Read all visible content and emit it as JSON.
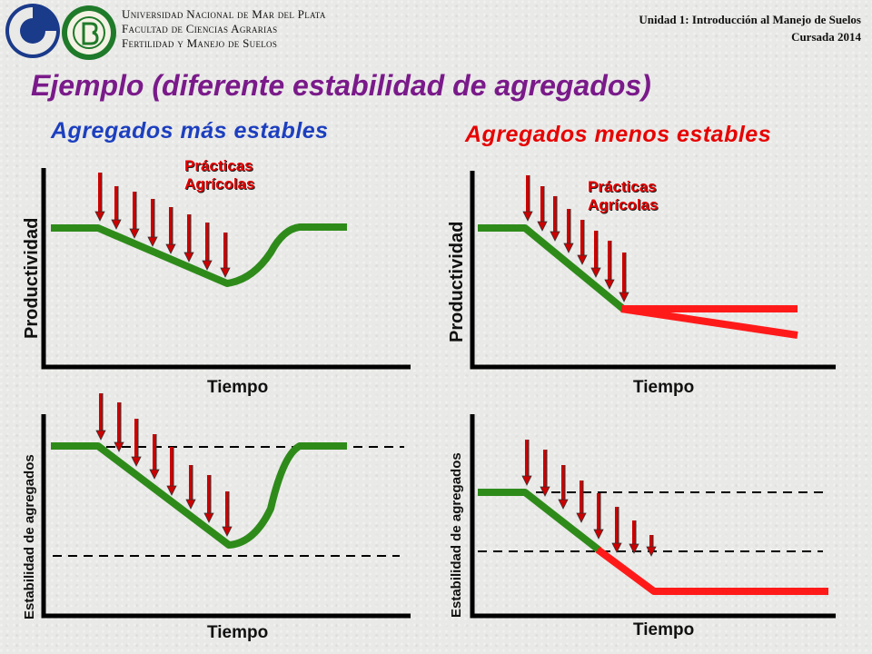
{
  "header": {
    "university_lines": [
      "Universidad Nacional de Mar del Plata",
      "Facultad de Ciencias Agrarias",
      "Fertilidad y Manejo de Suelos"
    ],
    "unit_line1": "Unidad 1: Introducción al Manejo de Suelos",
    "unit_line2": "Cursada 2014"
  },
  "title": "Ejemplo (diferente estabilidad de agregados)",
  "left": {
    "heading": "Agregados más estables",
    "practices": [
      "Prácticas",
      "Agrícolas"
    ],
    "top_ylabel": "Productividad",
    "top_xlabel": "Tiempo",
    "bottom_ylabel": "Estabilidad de agregados",
    "bottom_xlabel": "Tiempo"
  },
  "right": {
    "heading": "Agregados menos estables",
    "practices": [
      "Prácticas",
      "Agrícolas"
    ],
    "top_ylabel": "Productividad",
    "top_xlabel": "Tiempo",
    "bottom_ylabel": "Estabilidad de agregados",
    "bottom_xlabel": "Tiempo"
  },
  "colors": {
    "stable_curve": "#2e8b1a",
    "degraded_curve": "#ff1a1a",
    "arrows": "#cc0000",
    "title": "#7a1a8a",
    "heading_stable": "#1c3fbf",
    "heading_unstable": "#e60000"
  },
  "logos": [
    "university-logo-icon",
    "faculty-seal-icon"
  ]
}
